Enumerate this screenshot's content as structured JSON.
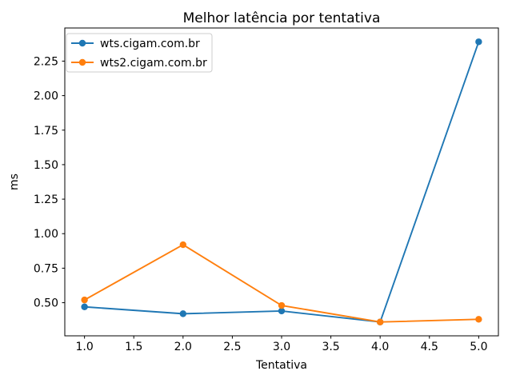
{
  "figure": {
    "background": "#ffffff"
  },
  "chart_data": {
    "type": "line",
    "title": "Melhor latência por tentativa",
    "xlabel": "Tentativa",
    "ylabel": "ms",
    "x": [
      1,
      2,
      3,
      4,
      5
    ],
    "series": [
      {
        "name": "wts.cigam.com.br",
        "color": "#1f77b4",
        "values": [
          0.47,
          0.42,
          0.44,
          0.36,
          2.39
        ]
      },
      {
        "name": "wts2.cigam.com.br",
        "color": "#ff7f0e",
        "values": [
          0.52,
          0.92,
          0.48,
          0.36,
          0.38
        ]
      }
    ],
    "xlim": [
      0.8,
      5.2
    ],
    "ylim": [
      0.26,
      2.49
    ],
    "xticks": {
      "values": [
        1.0,
        1.5,
        2.0,
        2.5,
        3.0,
        3.5,
        4.0,
        4.5,
        5.0
      ],
      "labels": [
        "1.0",
        "1.5",
        "2.0",
        "2.5",
        "3.0",
        "3.5",
        "4.0",
        "4.5",
        "5.0"
      ]
    },
    "yticks": {
      "values": [
        0.5,
        0.75,
        1.0,
        1.25,
        1.5,
        1.75,
        2.0,
        2.25
      ],
      "labels": [
        "0.50",
        "0.75",
        "1.00",
        "1.25",
        "1.50",
        "1.75",
        "2.00",
        "2.25"
      ]
    },
    "legend": {
      "position": "upper-left",
      "entries": [
        "wts.cigam.com.br",
        "wts2.cigam.com.br"
      ]
    },
    "grid": false,
    "marker": "o",
    "style": {
      "axis_color": "#000000",
      "text_color": "#000000",
      "legend_border_color": "#cccccc",
      "legend_background": "#ffffff"
    }
  }
}
